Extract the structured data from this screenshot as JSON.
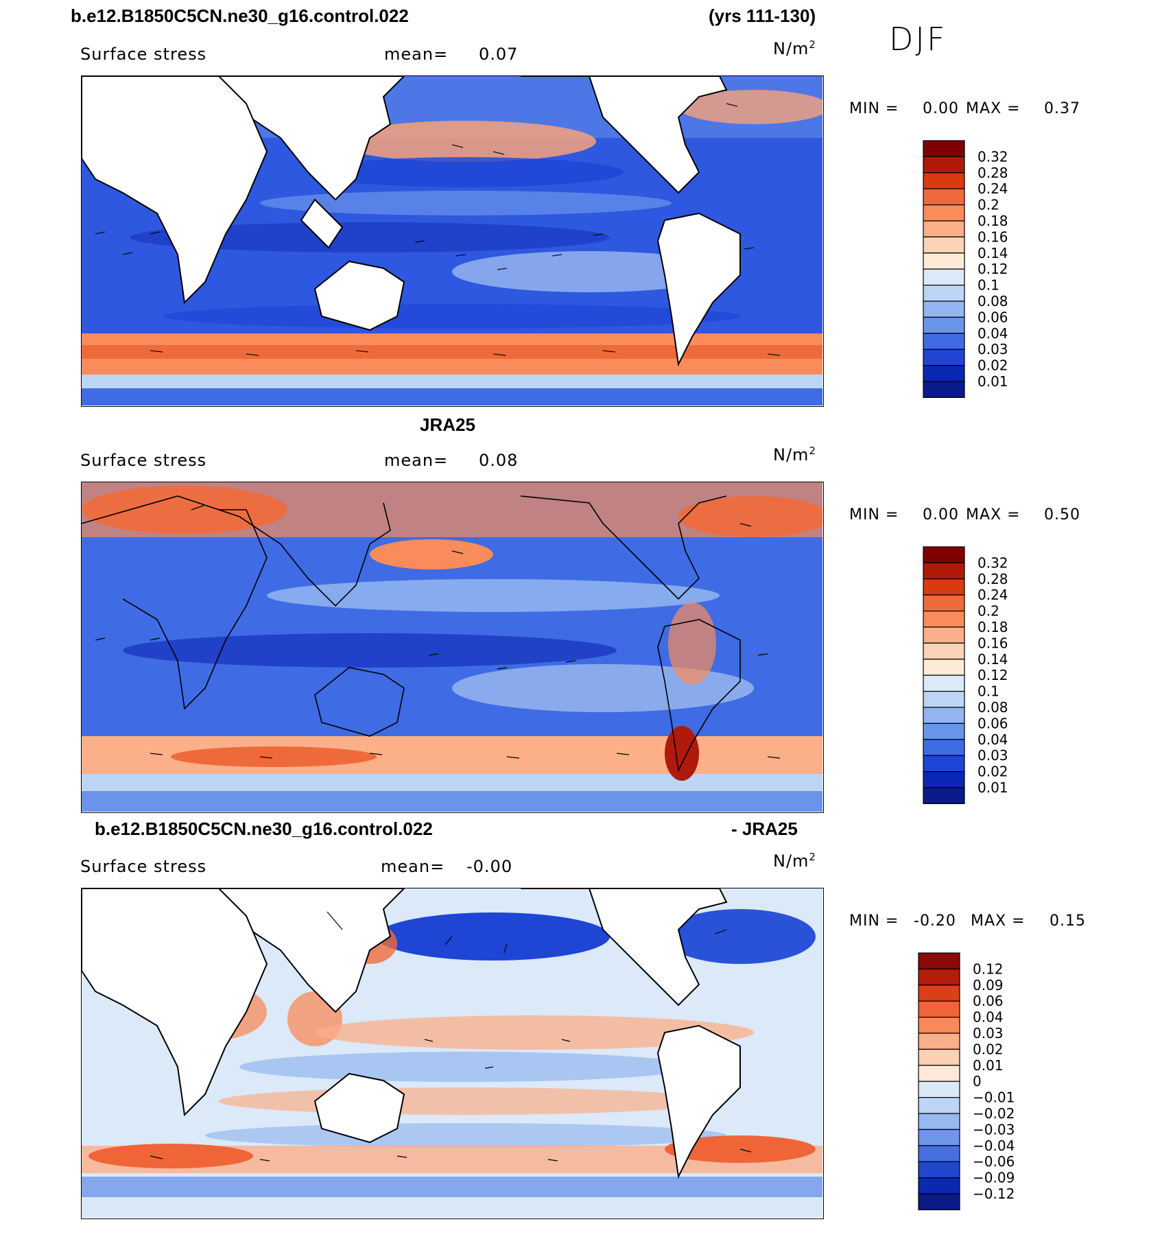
{
  "header": {
    "case_title": "b.e12.B1850C5CN.ne30_g16.control.022",
    "years": "(yrs 111-130)",
    "season": "DJF"
  },
  "panels": [
    {
      "title": "",
      "variable": "Surface stress",
      "mean_label": "mean=",
      "mean_value": "0.07",
      "units": "N/m",
      "units_exp": "2",
      "min_label": "MIN =",
      "min_value": "0.00",
      "max_label": "MAX =",
      "max_value": "0.37",
      "colorbar_levels": [
        "0.32",
        "0.28",
        "0.24",
        "0.2",
        "0.18",
        "0.16",
        "0.14",
        "0.12",
        "0.1",
        "0.08",
        "0.06",
        "0.04",
        "0.03",
        "0.02",
        "0.01"
      ]
    },
    {
      "title": "JRA25",
      "variable": "Surface stress",
      "mean_label": "mean=",
      "mean_value": "0.08",
      "units": "N/m",
      "units_exp": "2",
      "min_label": "MIN =",
      "min_value": "0.00",
      "max_label": "MAX =",
      "max_value": "0.50",
      "colorbar_levels": [
        "0.32",
        "0.28",
        "0.24",
        "0.2",
        "0.18",
        "0.16",
        "0.14",
        "0.12",
        "0.1",
        "0.08",
        "0.06",
        "0.04",
        "0.03",
        "0.02",
        "0.01"
      ]
    },
    {
      "title": "b.e12.B1850C5CN.ne30_g16.control.022",
      "title_right": "- JRA25",
      "variable": "Surface stress",
      "mean_label": "mean=",
      "mean_value": "-0.00",
      "units": "N/m",
      "units_exp": "2",
      "min_label": "MIN =",
      "min_value": "-0.20",
      "max_label": "MAX =",
      "max_value": "0.15",
      "colorbar_levels": [
        "0.12",
        "0.09",
        "0.06",
        "0.04",
        "0.03",
        "0.02",
        "0.01",
        "0",
        "-0.01",
        "-0.02",
        "-0.03",
        "-0.04",
        "-0.06",
        "-0.09",
        "-0.12"
      ]
    }
  ],
  "colors": {
    "magnitude_scale": [
      "#7f0000",
      "#b01a0a",
      "#d83a12",
      "#ef6a3a",
      "#f98c5a",
      "#fbb089",
      "#fcd3b6",
      "#fdebd8",
      "#dbe9f8",
      "#bcd5f4",
      "#93b6f0",
      "#6a94ea",
      "#3f6be4",
      "#1e45d4",
      "#0a27b4",
      "#0a1a8a"
    ],
    "diff_scale": [
      "#8a0a05",
      "#b51c0a",
      "#d9401a",
      "#ef6538",
      "#f8895a",
      "#fbae88",
      "#fdd0b4",
      "#fde9da",
      "#dbe8f8",
      "#bdd5f4",
      "#98b8f0",
      "#6f96ea",
      "#4670e2",
      "#2147cf",
      "#0b28b0",
      "#0a1a88"
    ]
  }
}
